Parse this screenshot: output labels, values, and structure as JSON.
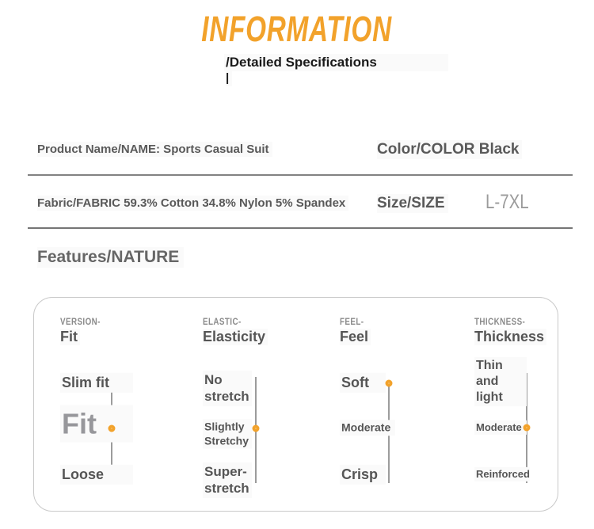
{
  "header": {
    "title": "INFORMATION",
    "subtitle": "/Detailed Specifications",
    "cursor": "|"
  },
  "specs": {
    "product_name": "Product Name/NAME: Sports Casual Suit",
    "color": "Color/COLOR Black",
    "fabric": "Fabric/FABRIC 59.3% Cotton 34.8% Nylon 5% Spandex",
    "size_label": "Size/SIZE",
    "size_value": "L-7XL",
    "features_heading": "Features/NATURE"
  },
  "features": {
    "columns": [
      {
        "label_small": "VERSION-",
        "label": "Fit",
        "selected_option": "Fit",
        "options": [
          {
            "label": "Slim fit",
            "selected": false
          },
          {
            "label": "Fit",
            "selected": true
          },
          {
            "label": "Loose",
            "selected": false
          }
        ]
      },
      {
        "label_small": "ELASTIC-",
        "label": "Elasticity",
        "selected_option": "Slightly Stretchy",
        "options": [
          {
            "label": "No stretch",
            "selected": false
          },
          {
            "label": "Slightly Stretchy",
            "selected": true
          },
          {
            "label": "Super-stretch",
            "selected": false
          }
        ]
      },
      {
        "label_small": "FEEL-",
        "label": "Feel",
        "selected_option": "Soft",
        "options": [
          {
            "label": "Soft",
            "selected": true
          },
          {
            "label": "Moderate",
            "selected": false
          },
          {
            "label": "Crisp",
            "selected": false
          }
        ]
      },
      {
        "label_small": "THICKNESS-",
        "label": "Thickness",
        "selected_option": "Moderate",
        "options": [
          {
            "label": "Thin and light",
            "selected": false
          },
          {
            "label": "Moderate",
            "selected": true
          },
          {
            "label": "Reinforced",
            "selected": false
          }
        ]
      }
    ]
  },
  "colors": {
    "accent_orange": "#F2A22B",
    "title_orange": "#F7A521",
    "text_dark_gray": "#595959",
    "text_light_gray": "#9b9b9b",
    "divider_gray": "#828282",
    "box_border_gray": "#c9c9c9"
  }
}
